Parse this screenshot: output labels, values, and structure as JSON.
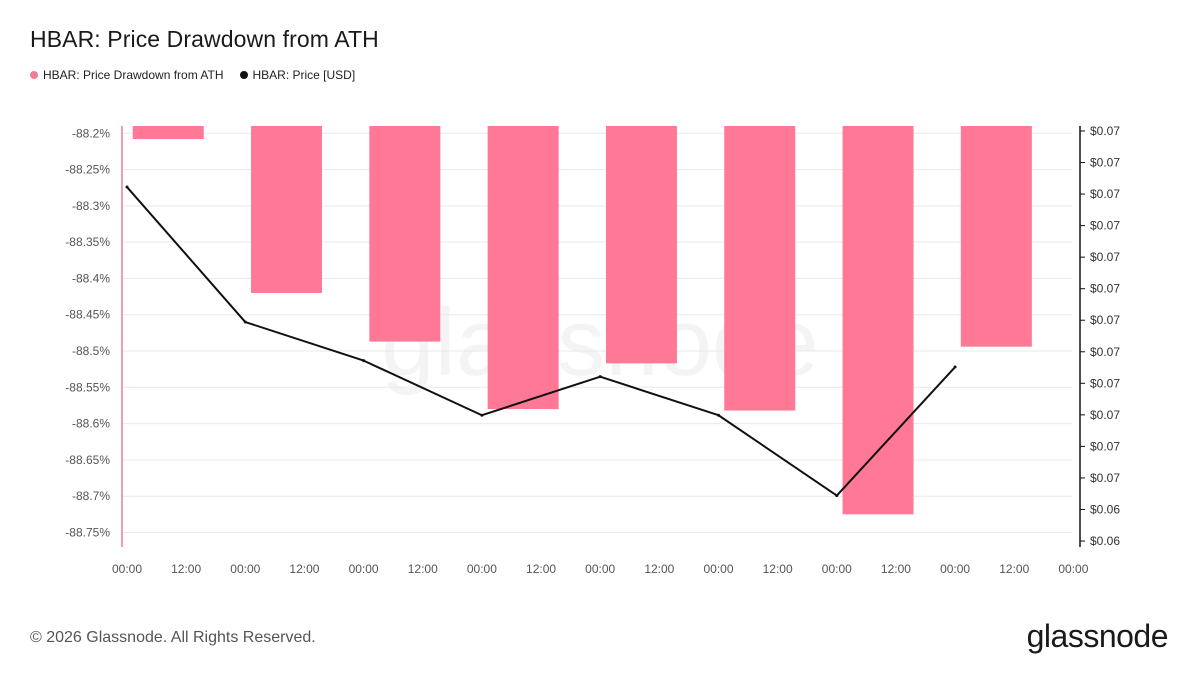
{
  "title": "HBAR: Price Drawdown from ATH",
  "legend": [
    {
      "label": "HBAR: Price Drawdown from ATH",
      "color": "#f47c97"
    },
    {
      "label": "HBAR: Price [USD]",
      "color": "#111111"
    }
  ],
  "footer": "© 2026 Glassnode. All Rights Reserved.",
  "brand": "glassnode",
  "watermark": "glassnode",
  "colors": {
    "bar": "#ff7896",
    "line": "#111111",
    "grid": "#e9e9e9",
    "left_axis": "#f47c97",
    "right_axis": "#111111",
    "tick_text": "#555555"
  },
  "chart_data": {
    "type": "bar",
    "title": "HBAR: Price Drawdown from ATH",
    "x_ticks": [
      "00:00",
      "12:00",
      "00:00",
      "12:00",
      "00:00",
      "12:00",
      "00:00",
      "12:00",
      "00:00",
      "12:00",
      "00:00",
      "12:00",
      "00:00",
      "12:00",
      "00:00",
      "12:00",
      "00:00"
    ],
    "left_axis": {
      "ticks": [
        "-88.2%",
        "-88.25%",
        "-88.3%",
        "-88.35%",
        "-88.4%",
        "-88.45%",
        "-88.5%",
        "-88.55%",
        "-88.6%",
        "-88.65%",
        "-88.7%",
        "-88.75%"
      ],
      "range": [
        -88.77,
        -88.19
      ]
    },
    "right_axis": {
      "ticks": [
        "$0.07",
        "$0.07",
        "$0.07",
        "$0.07",
        "$0.07",
        "$0.07",
        "$0.07",
        "$0.07",
        "$0.07",
        "$0.07",
        "$0.07",
        "$0.07",
        "$0.06",
        "$0.06"
      ]
    },
    "series": [
      {
        "name": "HBAR: Price Drawdown from ATH",
        "type": "bar",
        "x": [
          0.15,
          1.15,
          2.15,
          3.15,
          4.15,
          5.15,
          6.15,
          7.15
        ],
        "values": [
          -88.208,
          -88.42,
          -88.487,
          -88.58,
          -88.517,
          -88.582,
          -88.725,
          -88.494
        ]
      },
      {
        "name": "HBAR: Price [USD]",
        "type": "line",
        "x": [
          0,
          1,
          2,
          3,
          4,
          5,
          6,
          7
        ],
        "values": [
          0.0718,
          0.0676,
          0.0664,
          0.0647,
          0.0659,
          0.0647,
          0.0622,
          0.0662
        ],
        "range": [
          0.0606,
          0.0737
        ]
      }
    ],
    "grid": true,
    "legend": "top-left"
  }
}
